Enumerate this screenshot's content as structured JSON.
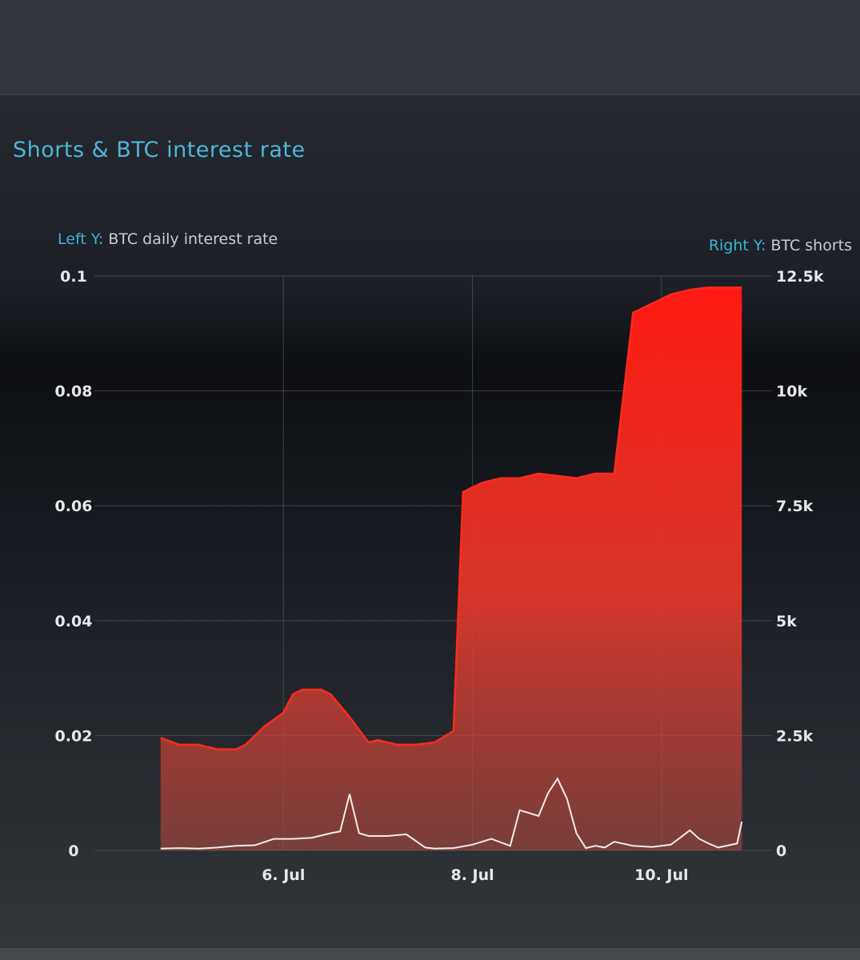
{
  "panel": {
    "title": "Shorts & BTC interest rate",
    "left_axis_key": "Left Y:",
    "left_axis_label": "BTC daily interest rate",
    "right_axis_key": "Right Y:",
    "right_axis_label": "BTC shorts"
  },
  "colors": {
    "title": "#4fb6d8",
    "axis_key": "#39b3d6",
    "shorts_area": "#ff2a1e",
    "rate_line": "#ffffff",
    "grid": "#5a5e66"
  },
  "chart_data": {
    "type": "area",
    "x_unit": "days",
    "x_range": [
      "4 Jul",
      "11 Jul"
    ],
    "x_ticks": [
      {
        "label": "6. Jul",
        "value": 6
      },
      {
        "label": "8. Jul",
        "value": 8
      },
      {
        "label": "10. Jul",
        "value": 10
      }
    ],
    "left_y": {
      "label": "BTC daily interest rate",
      "ylim": [
        0,
        0.1
      ],
      "ticks": [
        "0",
        "0.02",
        "0.04",
        "0.06",
        "0.08",
        "0.1"
      ],
      "tick_values": [
        0,
        0.02,
        0.04,
        0.06,
        0.08,
        0.1
      ]
    },
    "right_y": {
      "label": "BTC shorts",
      "ylim": [
        0,
        12500
      ],
      "ticks": [
        "0",
        "2.5k",
        "5k",
        "7.5k",
        "10k",
        "12.5k"
      ],
      "tick_values": [
        0,
        2500,
        5000,
        7500,
        10000,
        12500
      ]
    },
    "grid": true,
    "series": [
      {
        "name": "BTC shorts",
        "axis": "right",
        "style": "area",
        "x": [
          4.7,
          4.9,
          5.1,
          5.3,
          5.5,
          5.6,
          5.8,
          6.0,
          6.1,
          6.2,
          6.4,
          6.5,
          6.7,
          6.9,
          7.0,
          7.2,
          7.4,
          7.6,
          7.8,
          7.9,
          8.0,
          8.1,
          8.3,
          8.5,
          8.7,
          8.9,
          9.1,
          9.3,
          9.5,
          9.7,
          9.9,
          10.1,
          10.3,
          10.5,
          10.7,
          10.85
        ],
        "values": [
          2450,
          2300,
          2300,
          2200,
          2200,
          2300,
          2700,
          3000,
          3400,
          3500,
          3500,
          3400,
          2900,
          2350,
          2400,
          2300,
          2300,
          2350,
          2600,
          7800,
          7900,
          8000,
          8100,
          8100,
          8200,
          8150,
          8100,
          8200,
          8200,
          11700,
          11900,
          12100,
          12200,
          12250,
          12250,
          12250
        ]
      },
      {
        "name": "BTC daily interest rate",
        "axis": "left",
        "style": "line",
        "x": [
          4.7,
          4.9,
          5.1,
          5.3,
          5.5,
          5.7,
          5.9,
          6.1,
          6.3,
          6.5,
          6.6,
          6.7,
          6.8,
          6.9,
          7.1,
          7.3,
          7.5,
          7.6,
          7.8,
          8.0,
          8.2,
          8.4,
          8.5,
          8.7,
          8.8,
          8.9,
          9.0,
          9.1,
          9.2,
          9.3,
          9.4,
          9.5,
          9.7,
          9.9,
          10.1,
          10.3,
          10.4,
          10.5,
          10.6,
          10.8,
          10.85
        ],
        "values": [
          0.0003,
          0.0004,
          0.0003,
          0.0005,
          0.0008,
          0.0009,
          0.002,
          0.002,
          0.0022,
          0.003,
          0.0033,
          0.0098,
          0.003,
          0.0025,
          0.0025,
          0.0028,
          0.0005,
          0.0003,
          0.0004,
          0.001,
          0.002,
          0.0008,
          0.007,
          0.006,
          0.01,
          0.0125,
          0.009,
          0.003,
          0.0004,
          0.0008,
          0.0005,
          0.0015,
          0.0008,
          0.0006,
          0.001,
          0.0035,
          0.002,
          0.0012,
          0.0005,
          0.0012,
          0.005
        ]
      }
    ]
  }
}
